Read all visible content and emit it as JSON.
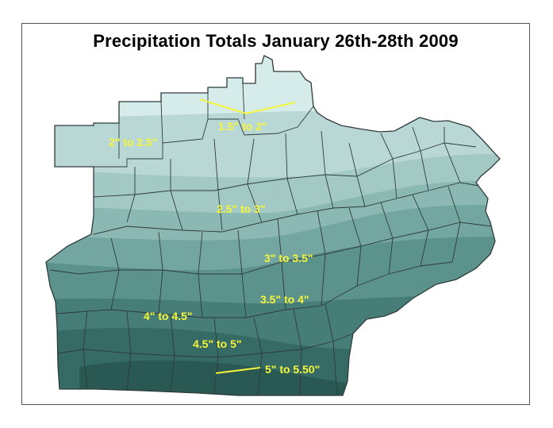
{
  "map": {
    "title": "Precipitation Totals January 26th-28th 2009",
    "colors": {
      "band_1": "#d6ecea",
      "band_2": "#b9d8d5",
      "band_3": "#a3c9c5",
      "band_4": "#8bb8b3",
      "band_5": "#73a6a0",
      "band_6": "#5c928c",
      "band_7": "#477d77",
      "band_8": "#366a65",
      "band_9": "#2a5954",
      "border": "#2e3b3a",
      "label": "#f5f53a"
    },
    "bands": [
      {
        "id": "1.5-2",
        "label": "1.5\" to 2\""
      },
      {
        "id": "2-2.5",
        "label": "2\" to 2.5\""
      },
      {
        "id": "2.5-3",
        "label": "2.5\" to 3\""
      },
      {
        "id": "3-3.5",
        "label": "3\" to 3.5\""
      },
      {
        "id": "3.5-4",
        "label": "3.5\" to 4\""
      },
      {
        "id": "4-4.5",
        "label": "4\" to 4.5\""
      },
      {
        "id": "4.5-5",
        "label": "4.5\" to 5\""
      },
      {
        "id": "5-5.50",
        "label": "5\" to 5.50\""
      }
    ]
  }
}
